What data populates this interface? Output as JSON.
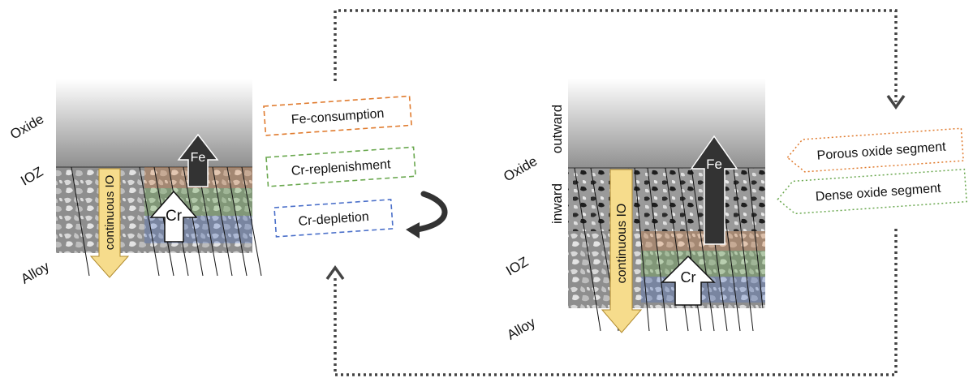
{
  "left_panel": {
    "labels": {
      "oxide": "Oxide",
      "ioz": "IOZ",
      "alloy": "Alloy"
    },
    "arrows": {
      "fe": "Fe",
      "cr": "Cr",
      "continuous_io": "continuous IO"
    }
  },
  "middle_boxes": {
    "fe_consumption": "Fe-consumption",
    "cr_replenishment": "Cr-replenishment",
    "cr_depletion": "Cr-depletion"
  },
  "right_panel": {
    "labels": {
      "outward": "outward",
      "oxide": "Oxide",
      "inward": "inward",
      "ioz": "IOZ",
      "alloy": "Alloy"
    },
    "arrows": {
      "fe": "Fe",
      "cr": "Cr",
      "continuous_io": "continuous IO"
    }
  },
  "right_callouts": {
    "porous": "Porous oxide segment",
    "dense": "Dense oxide segment"
  },
  "colors": {
    "fe_consumption": "#e07b2e",
    "cr_replenishment": "#6aa84f",
    "cr_depletion": "#4a6fc9",
    "continuous_io": "#f6dc8c",
    "fe_arrow": "#333333",
    "loop_arrow": "#444444"
  }
}
